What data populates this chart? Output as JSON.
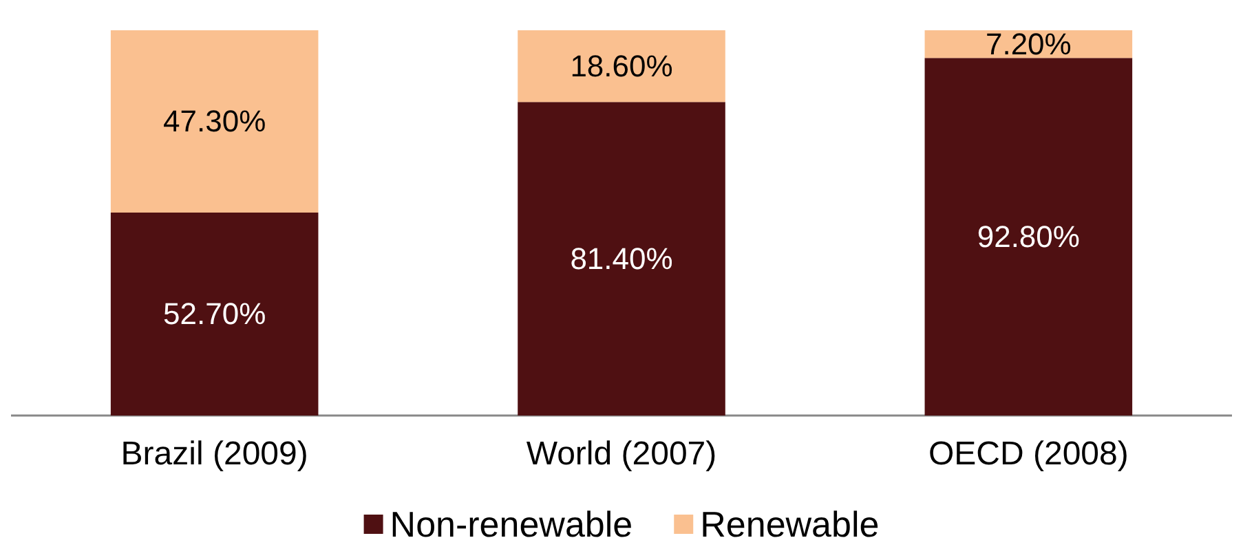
{
  "chart_data": {
    "type": "bar",
    "stacked": true,
    "categories": [
      "Brazil (2009)",
      "World (2007)",
      "OECD (2008)"
    ],
    "series": [
      {
        "name": "Non-renewable",
        "color": "#4f1012",
        "values": [
          52.7,
          81.4,
          92.8
        ],
        "value_labels": [
          "52.70%",
          "81.40%",
          "92.80%"
        ]
      },
      {
        "name": "Renewable",
        "color": "#fac090",
        "values": [
          47.3,
          18.6,
          7.2
        ],
        "value_labels": [
          "47.30%",
          "18.60%",
          "7.20%"
        ]
      }
    ],
    "ylim": [
      0,
      100
    ],
    "tick_labels": "x",
    "grid": false,
    "legend": "bottom"
  }
}
